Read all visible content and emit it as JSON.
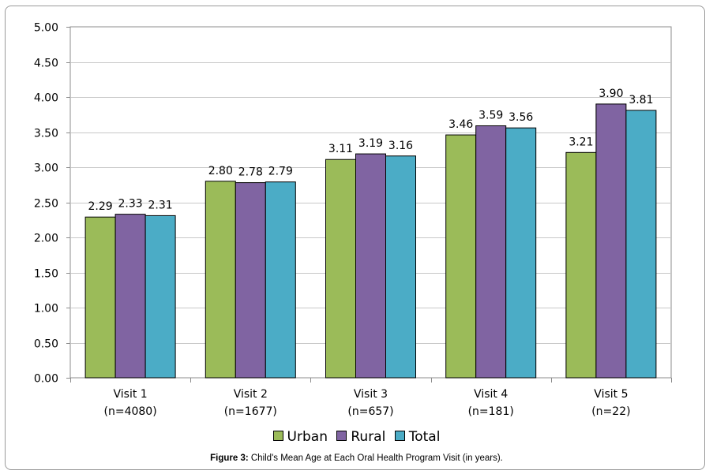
{
  "chart_data": {
    "type": "bar",
    "categories": [
      [
        "Visit 1",
        "(n=4080)"
      ],
      [
        "Visit 2",
        "(n=1677)"
      ],
      [
        "Visit 3",
        "(n=657)"
      ],
      [
        "Visit 4",
        "(n=181)"
      ],
      [
        "Visit 5",
        "(n=22)"
      ]
    ],
    "series": [
      {
        "name": "Urban",
        "color": "#9bbb59",
        "values": [
          2.29,
          2.8,
          3.11,
          3.46,
          3.21
        ],
        "labels": [
          "2.29",
          "2.80",
          "3.11",
          "3.46",
          "3.21"
        ]
      },
      {
        "name": "Rural",
        "color": "#8064a2",
        "values": [
          2.33,
          2.78,
          3.19,
          3.59,
          3.9
        ],
        "labels": [
          "2.33",
          "2.78",
          "3.19",
          "3.59",
          "3.90"
        ]
      },
      {
        "name": "Total",
        "color": "#4bacc6",
        "values": [
          2.31,
          2.79,
          3.16,
          3.56,
          3.81
        ],
        "labels": [
          "2.31",
          "2.79",
          "3.16",
          "3.56",
          "3.81"
        ]
      }
    ],
    "yticks": [
      "0.00",
      "0.50",
      "1.00",
      "1.50",
      "2.00",
      "2.50",
      "3.00",
      "3.50",
      "4.00",
      "4.50",
      "5.00"
    ],
    "ylim": [
      0,
      5
    ],
    "grid": true,
    "legend": "bottom"
  },
  "caption": {
    "label": "Figure 3:",
    "text": " Child's Mean Age at Each Oral Health Program Visit (in years)."
  }
}
